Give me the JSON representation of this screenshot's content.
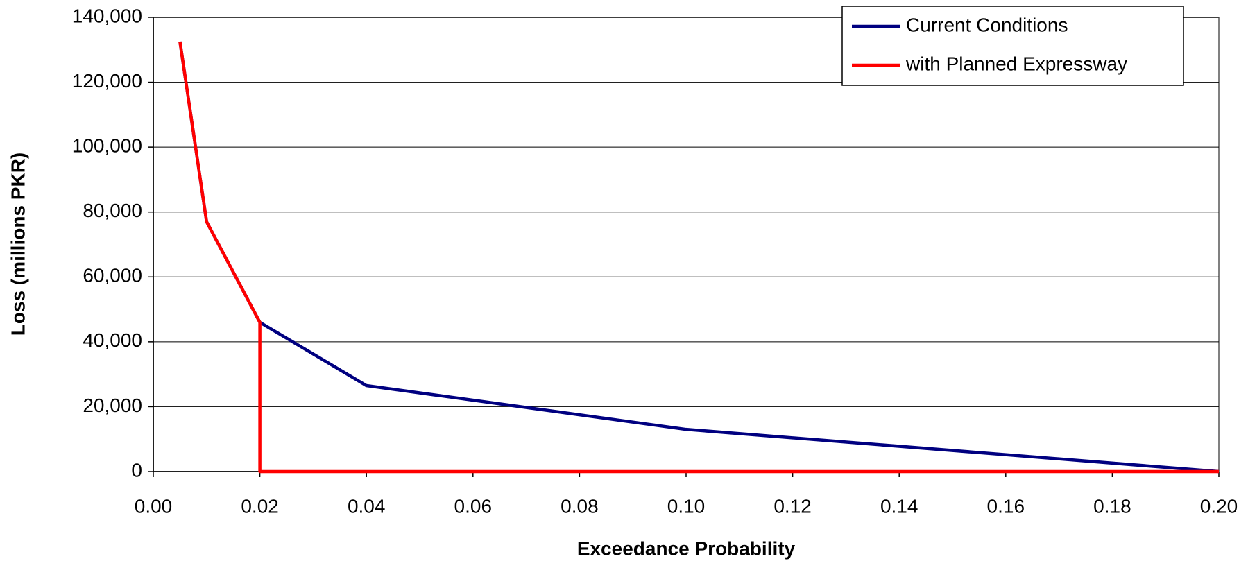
{
  "chart_data": {
    "type": "line",
    "xlabel": "Exceedance Probability",
    "ylabel": "Loss (millions PKR)",
    "series": [
      {
        "name": "Current Conditions",
        "color": "#000080",
        "x": [
          0.005,
          0.01,
          0.02,
          0.04,
          0.1,
          0.2
        ],
        "values": [
          132500,
          77000,
          46000,
          26500,
          13000,
          0
        ]
      },
      {
        "name": "with Planned Expressway",
        "color": "#ff0000",
        "x": [
          0.005,
          0.01,
          0.02,
          0.02,
          0.2
        ],
        "values": [
          132500,
          77000,
          46000,
          0,
          0
        ]
      }
    ],
    "xlim": [
      0,
      0.2
    ],
    "xticks": [
      {
        "value": 0,
        "label": "0.00"
      },
      {
        "value": 0.02,
        "label": "0.02"
      },
      {
        "value": 0.04,
        "label": "0.04"
      },
      {
        "value": 0.06,
        "label": "0.06"
      },
      {
        "value": 0.08,
        "label": "0.08"
      },
      {
        "value": 0.1,
        "label": "0.10"
      },
      {
        "value": 0.12,
        "label": "0.12"
      },
      {
        "value": 0.14,
        "label": "0.14"
      },
      {
        "value": 0.16,
        "label": "0.16"
      },
      {
        "value": 0.18,
        "label": "0.18"
      },
      {
        "value": 0.2,
        "label": "0.20"
      }
    ],
    "ylim": [
      0,
      140000
    ],
    "yticks": [
      0,
      {
        "value": 20000,
        "label": "20,000"
      },
      {
        "value": 40000,
        "label": "40,000"
      },
      {
        "value": 60000,
        "label": "60,000"
      },
      {
        "value": 80000,
        "label": "80,000"
      },
      {
        "value": 100000,
        "label": "100,000"
      },
      {
        "value": 120000,
        "label": "120,000"
      },
      {
        "value": 140000,
        "label": "140,000"
      }
    ],
    "grid": true,
    "legend": "top-right"
  }
}
